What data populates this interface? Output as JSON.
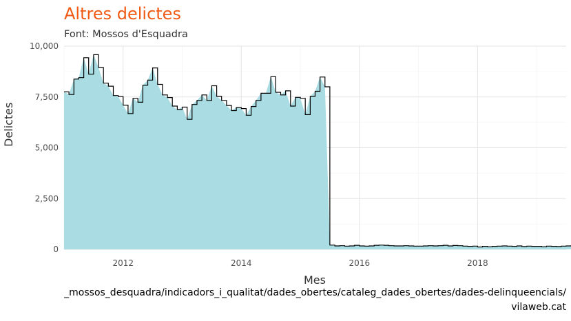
{
  "chart_data": {
    "type": "area",
    "title": "Altres delictes",
    "subtitle": "Font: Mossos d'Esquadra",
    "xlabel": "Mes",
    "ylabel": "Delictes",
    "caption_line1": "_mossos_desquadra/indicadors_i_qualitat/dades_obertes/cataleg_dades_obertes/dades-delinqueencials/",
    "caption_line2": "vilaweb.cat",
    "xlim": [
      2011.0,
      2019.5
    ],
    "ylim": [
      0,
      10000
    ],
    "x_ticks": [
      2012,
      2014,
      2016,
      2018
    ],
    "x_tick_labels": [
      "2012",
      "2014",
      "2016",
      "2018"
    ],
    "y_ticks": [
      0,
      2500,
      5000,
      7500,
      10000
    ],
    "y_tick_labels": [
      "0",
      "2,500",
      "5,000",
      "7,500",
      "10,000"
    ],
    "grid": true,
    "colors": {
      "area": "#a9dde3",
      "step_line": "#000000",
      "title": "#f05a14"
    },
    "start": "2011-01",
    "series": [
      {
        "values": [
          7750,
          7620,
          8380,
          8450,
          9430,
          8620,
          9580,
          8950,
          8180,
          8030,
          7570,
          7520,
          7100,
          6680,
          7430,
          7240,
          8080,
          8330,
          8930,
          8120,
          7600,
          7470,
          7050,
          6880,
          7000,
          6400,
          7130,
          7330,
          7600,
          7330,
          8050,
          7530,
          7330,
          7080,
          6830,
          6980,
          6930,
          6600,
          7030,
          7330,
          7680,
          7680,
          8500,
          7730,
          7600,
          7800,
          7050,
          7480,
          7430,
          6630,
          7530,
          7780,
          8480,
          8000,
          210,
          170,
          180,
          160,
          170,
          200,
          170,
          160,
          170,
          200,
          210,
          200,
          180,
          170,
          170,
          180,
          170,
          160,
          160,
          170,
          180,
          170,
          180,
          200,
          170,
          190,
          180,
          160,
          150,
          160,
          120,
          150,
          130,
          150,
          160,
          170,
          160,
          150,
          170,
          140,
          160,
          150,
          150,
          130,
          160,
          150,
          140,
          160,
          170,
          180
        ]
      }
    ]
  }
}
